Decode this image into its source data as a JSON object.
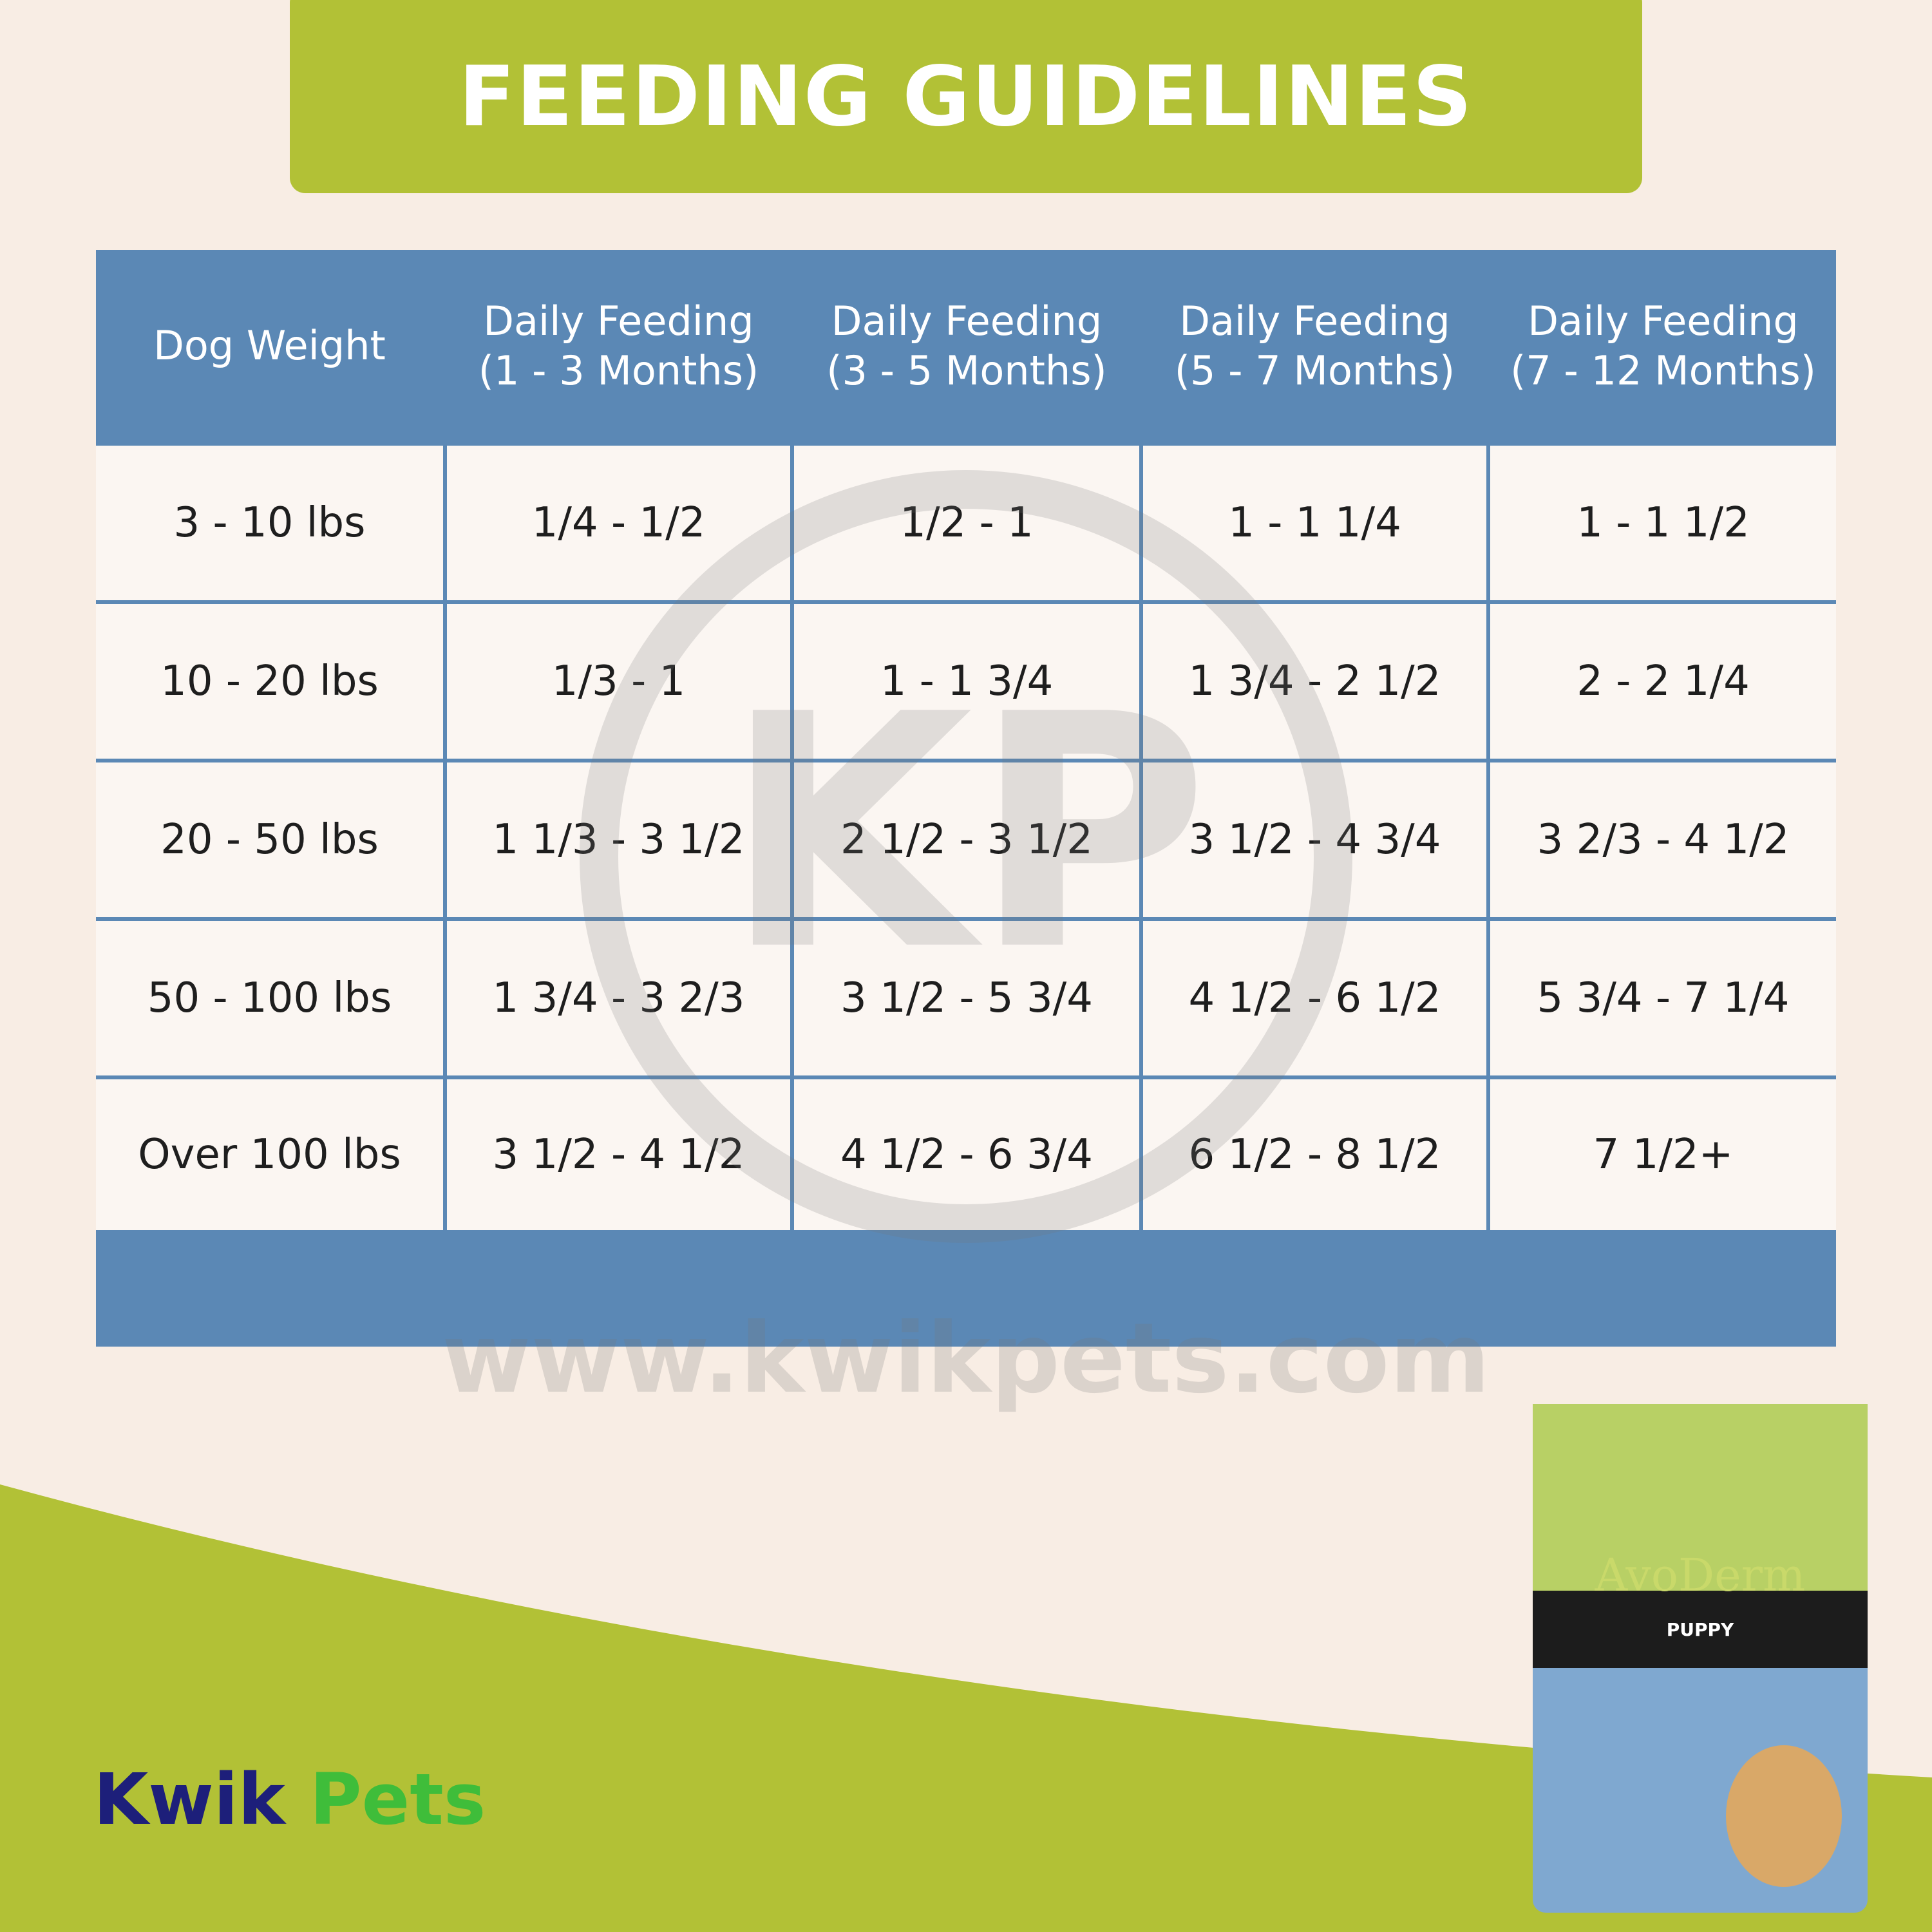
{
  "header": {
    "title": "FEEDING GUIDELINES"
  },
  "table": {
    "columns": [
      "Dog Weight",
      "Daily Feeding\n(1 - 3 Months)",
      "Daily Feeding\n(3 - 5 Months)",
      "Daily Feeding\n(5 - 7 Months)",
      "Daily Feeding\n(7 - 12 Months)"
    ],
    "rows": [
      [
        "3 - 10 lbs",
        "1/4 - 1/2",
        "1/2 - 1",
        "1 - 1 1/4",
        "1 - 1 1/2"
      ],
      [
        "10 - 20 lbs",
        "1/3 - 1",
        "1 - 1 3/4",
        "1 3/4 - 2 1/2",
        "2 - 2 1/4"
      ],
      [
        "20 - 50 lbs",
        "1 1/3 - 3 1/2",
        "2 1/2 - 3 1/2",
        "3 1/2 - 4 3/4",
        "3 2/3 - 4 1/2"
      ],
      [
        "50 - 100 lbs",
        "1 3/4 - 3 2/3",
        "3 1/2 - 5 3/4",
        "4 1/2 - 6 1/2",
        "5 3/4 - 7 1/4"
      ],
      [
        "Over 100 lbs",
        "3 1/2 - 4 1/2",
        "4 1/2 - 6 3/4",
        "6 1/2 - 8 1/2",
        "7 1/2+"
      ]
    ]
  },
  "watermark": {
    "logo": "KP",
    "url": "www.kwikpets.com"
  },
  "logo": {
    "words": [
      "Kwik",
      "Pets"
    ]
  },
  "product": {
    "brand": "AvoDerm",
    "variant": "PUPPY"
  }
}
